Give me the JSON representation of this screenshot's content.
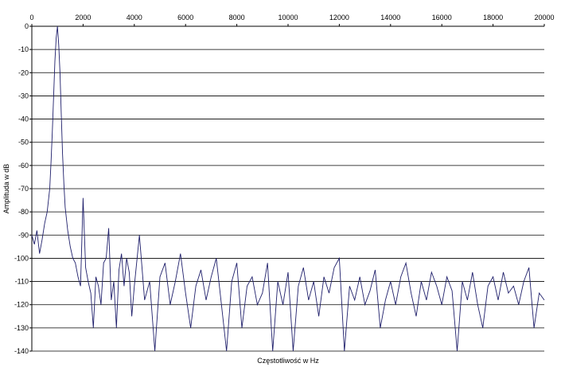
{
  "chart_data": {
    "type": "line",
    "title": "",
    "xlabel": "Częstotliwość w Hz",
    "ylabel": "Amplituda w dB",
    "xlim": [
      0,
      20000
    ],
    "ylim": [
      -140,
      0
    ],
    "x_ticks": [
      "0",
      "2000",
      "4000",
      "6000",
      "8000",
      "10000",
      "12000",
      "14000",
      "16000",
      "18000",
      "20000"
    ],
    "y_ticks": [
      "0",
      "-10",
      "-20",
      "-30",
      "-40",
      "-50",
      "-60",
      "-70",
      "-80",
      "-90",
      "-100",
      "-110",
      "-120",
      "-130",
      "-140"
    ],
    "x_axis_position": "top",
    "grid": "horizontal",
    "colors": {
      "line": "#1f1f6b",
      "grid": "#000000",
      "background": "#ffffff"
    },
    "series": [
      {
        "x": [
          0,
          100,
          200,
          300,
          400,
          500,
          600,
          700,
          750,
          800,
          850,
          900,
          950,
          1000,
          1050,
          1100,
          1150,
          1200,
          1250,
          1300,
          1400,
          1500,
          1600,
          1700,
          1800,
          1900,
          2000,
          2100,
          2200,
          2300,
          2400,
          2500,
          2600,
          2700,
          2800,
          2900,
          3000,
          3100,
          3200,
          3300,
          3400,
          3500,
          3600,
          3700,
          3800,
          3900,
          4000,
          4200,
          4400,
          4600,
          4800,
          5000,
          5200,
          5400,
          5600,
          5800,
          6000,
          6200,
          6400,
          6600,
          6800,
          7000,
          7200,
          7400,
          7600,
          7800,
          8000,
          8200,
          8400,
          8600,
          8800,
          9000,
          9200,
          9400,
          9600,
          9800,
          10000,
          10200,
          10400,
          10600,
          10800,
          11000,
          11200,
          11400,
          11600,
          11800,
          12000,
          12200,
          12400,
          12600,
          12800,
          13000,
          13200,
          13400,
          13600,
          13800,
          14000,
          14200,
          14400,
          14600,
          14800,
          15000,
          15200,
          15400,
          15600,
          15800,
          16000,
          16200,
          16400,
          16600,
          16800,
          17000,
          17200,
          17400,
          17600,
          17800,
          18000,
          18200,
          18400,
          18600,
          18800,
          19000,
          19200,
          19400,
          19600,
          19800,
          20000
        ],
        "values": [
          -90,
          -94,
          -88,
          -98,
          -92,
          -85,
          -80,
          -70,
          -58,
          -45,
          -30,
          -15,
          -5,
          0,
          -8,
          -20,
          -38,
          -55,
          -68,
          -78,
          -88,
          -95,
          -100,
          -102,
          -108,
          -112,
          -74,
          -104,
          -110,
          -115,
          -130,
          -108,
          -112,
          -120,
          -102,
          -100,
          -87,
          -118,
          -110,
          -130,
          -105,
          -98,
          -112,
          -100,
          -106,
          -125,
          -112,
          -90,
          -118,
          -110,
          -140,
          -108,
          -102,
          -120,
          -110,
          -98,
          -115,
          -130,
          -112,
          -105,
          -118,
          -108,
          -100,
          -120,
          -140,
          -110,
          -102,
          -130,
          -112,
          -108,
          -120,
          -115,
          -102,
          -140,
          -110,
          -120,
          -106,
          -140,
          -112,
          -104,
          -118,
          -110,
          -125,
          -108,
          -115,
          -104,
          -100,
          -140,
          -112,
          -118,
          -108,
          -120,
          -114,
          -105,
          -130,
          -118,
          -110,
          -120,
          -108,
          -102,
          -115,
          -125,
          -110,
          -118,
          -106,
          -112,
          -120,
          -108,
          -114,
          -140,
          -110,
          -118,
          -106,
          -120,
          -130,
          -112,
          -108,
          -118,
          -106,
          -115,
          -112,
          -120,
          -110,
          -104,
          -130,
          -115,
          -118
        ]
      }
    ]
  }
}
